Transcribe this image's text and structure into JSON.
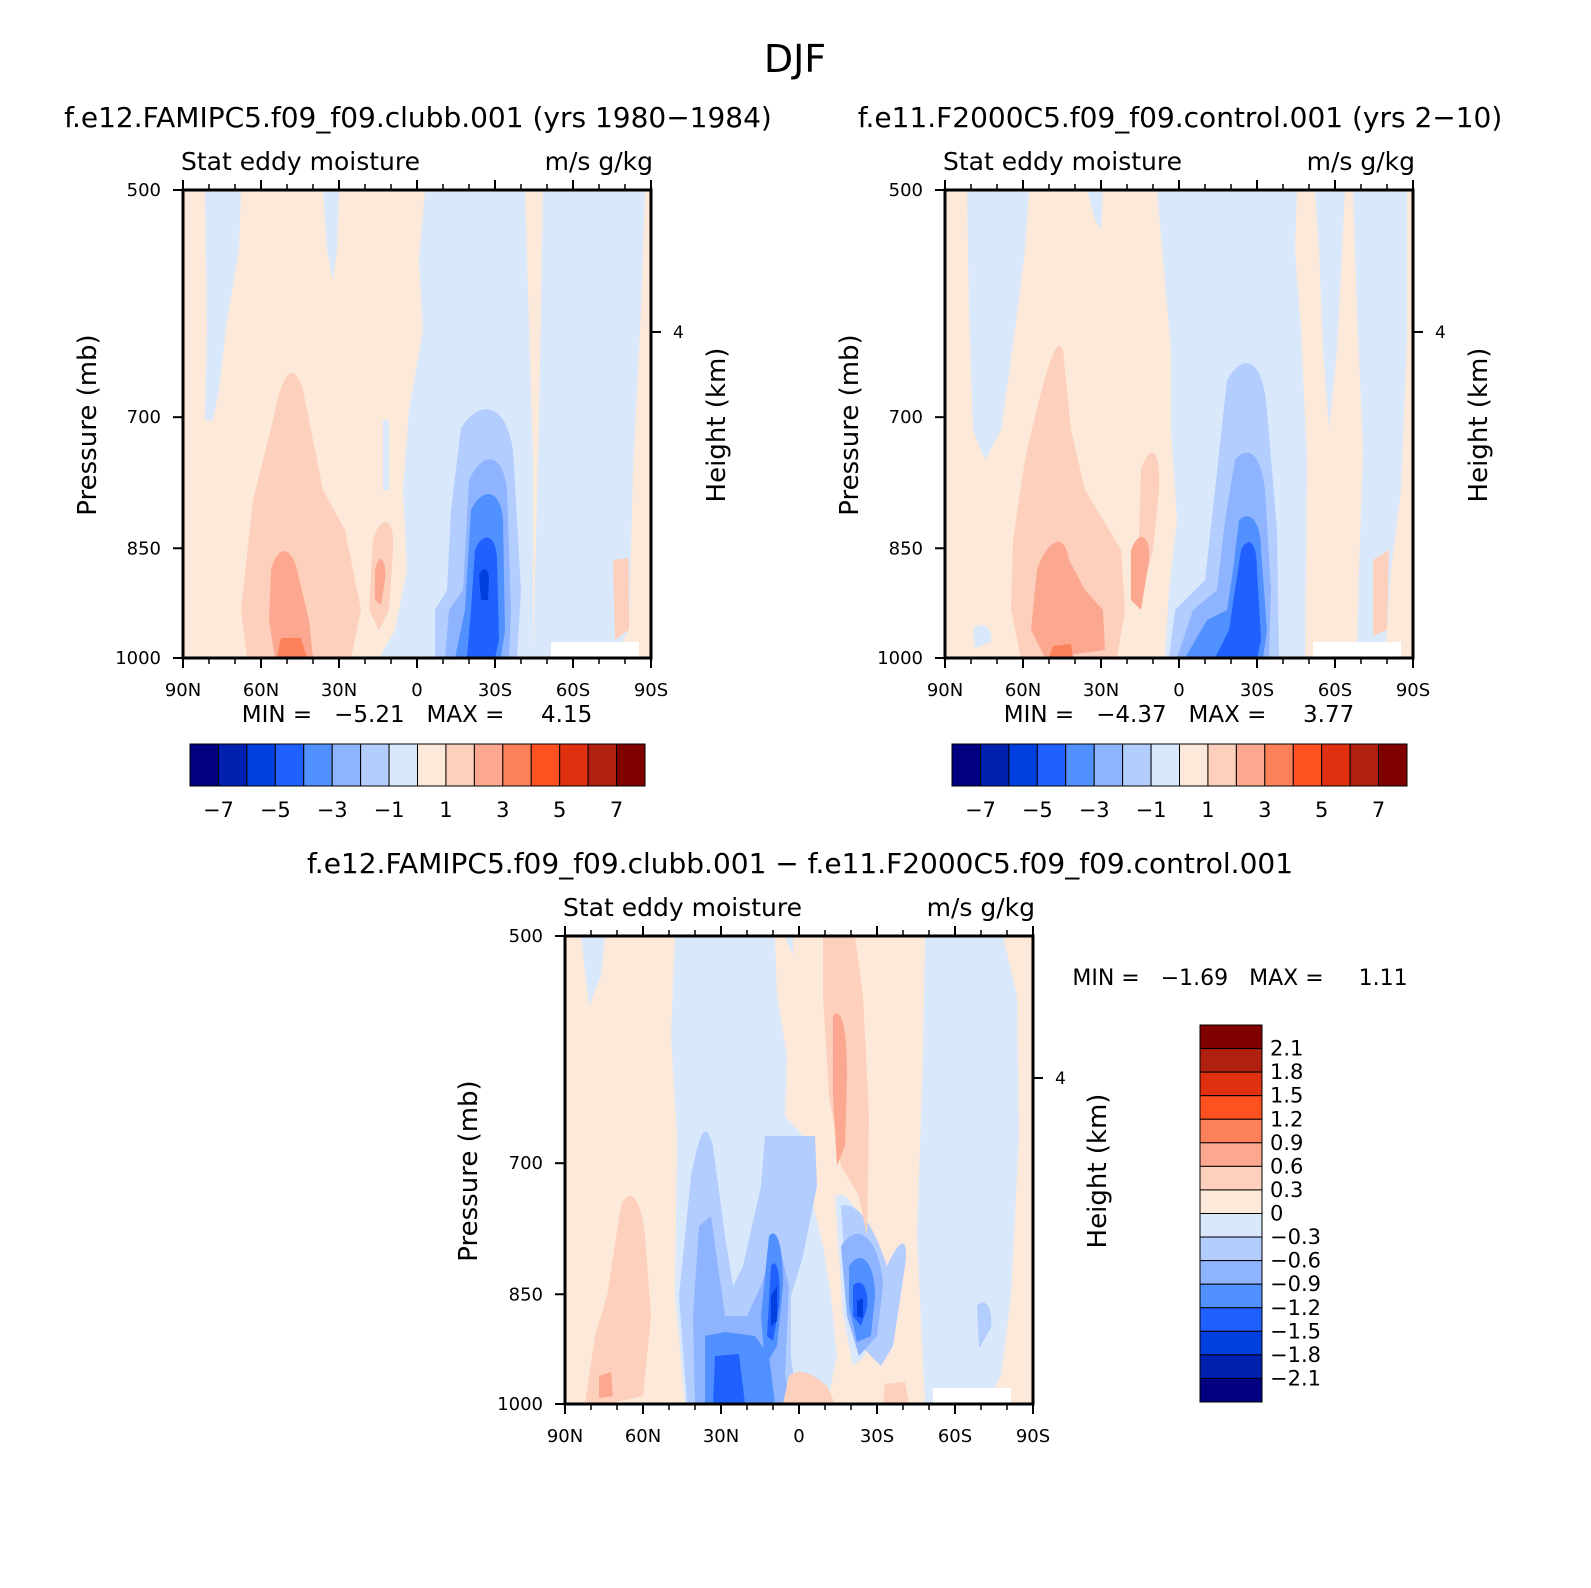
{
  "figure_title": "DJF",
  "colors": {
    "full": [
      "#000080",
      "#0020b0",
      "#0040e0",
      "#2060ff",
      "#5090ff",
      "#8fb4ff",
      "#b4cdff",
      "#d9e9fb",
      "#fde9d9",
      "#fcd0bc",
      "#fca890",
      "#fc8058",
      "#ff5020",
      "#e03010",
      "#b02010",
      "#800000"
    ],
    "diff": [
      "#000080",
      "#0020b0",
      "#0040e0",
      "#2060ff",
      "#5090ff",
      "#8fb4ff",
      "#b4cdff",
      "#d9e9fb",
      "#fde9d9",
      "#fcd0bc",
      "#fca890",
      "#fc8058",
      "#ff5020",
      "#e03010",
      "#b02010",
      "#800000"
    ]
  },
  "chart_data": [
    {
      "type": "heatmap",
      "title": "f.e12.FAMIPC5.f09_f09.clubb.001 (yrs 1980−1984)",
      "left_label": "Stat eddy moisture",
      "right_label": "m/s g/kg",
      "ylabel": "Pressure (mb)",
      "ylabel_right": "Height (km)",
      "xticks": [
        "90N",
        "60N",
        "30N",
        "0",
        "30S",
        "60S",
        "90S"
      ],
      "yticks": [
        "500",
        "700",
        "850",
        "1000"
      ],
      "yticks_right": [
        "4"
      ],
      "ylim": [
        1000,
        500
      ],
      "log_pressure_axis": true,
      "stats_text": "MIN =   −5.21   MAX =     4.15",
      "min": -5.21,
      "max": 4.15,
      "colorbar_labels": [
        "−7",
        "−5",
        "−3",
        "−1",
        "1",
        "3",
        "5",
        "7"
      ]
    },
    {
      "type": "heatmap",
      "title": "f.e11.F2000C5.f09_f09.control.001 (yrs 2−10)",
      "left_label": "Stat eddy moisture",
      "right_label": "m/s g/kg",
      "ylabel": "Pressure (mb)",
      "ylabel_right": "Height (km)",
      "xticks": [
        "90N",
        "60N",
        "30N",
        "0",
        "30S",
        "60S",
        "90S"
      ],
      "yticks": [
        "500",
        "700",
        "850",
        "1000"
      ],
      "yticks_right": [
        "4"
      ],
      "ylim": [
        1000,
        500
      ],
      "log_pressure_axis": true,
      "stats_text": "MIN =   −4.37   MAX =     3.77",
      "min": -4.37,
      "max": 3.77,
      "colorbar_labels": [
        "−7",
        "−5",
        "−3",
        "−1",
        "1",
        "3",
        "5",
        "7"
      ]
    },
    {
      "type": "heatmap",
      "title": "f.e12.FAMIPC5.f09_f09.clubb.001 − f.e11.F2000C5.f09_f09.control.001",
      "left_label": "Stat eddy moisture",
      "right_label": "m/s g/kg",
      "ylabel": "Pressure (mb)",
      "ylabel_right": "Height (km)",
      "xticks": [
        "90N",
        "60N",
        "30N",
        "0",
        "30S",
        "60S",
        "90S"
      ],
      "yticks": [
        "500",
        "700",
        "850",
        "1000"
      ],
      "yticks_right": [
        "4"
      ],
      "ylim": [
        1000,
        500
      ],
      "log_pressure_axis": true,
      "stats_text": "MIN =   −1.69   MAX =     1.11",
      "min": -1.69,
      "max": 1.11,
      "colorbar_labels": [
        "2.1",
        "1.8",
        "1.5",
        "1.2",
        "0.9",
        "0.6",
        "0.3",
        "0",
        "−0.3",
        "−0.6",
        "−0.9",
        "−1.2",
        "−1.5",
        "−1.8",
        "−2.1"
      ]
    }
  ]
}
